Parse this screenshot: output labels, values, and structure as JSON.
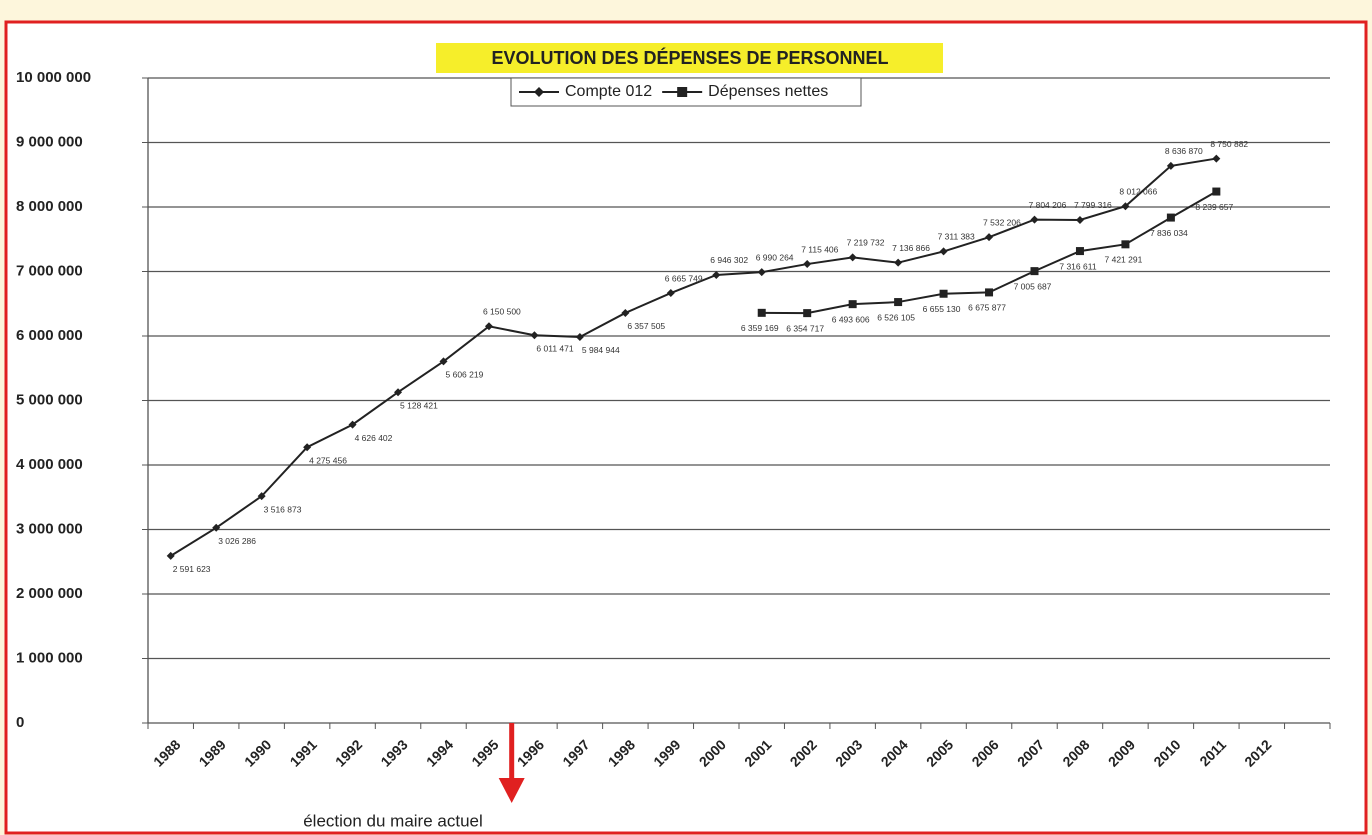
{
  "chart_data": {
    "type": "line",
    "title": "EVOLUTION DES DÉPENSES DE PERSONNEL",
    "annotation": "élection du maire actuel",
    "categories": [
      "1988",
      "1989",
      "1990",
      "1991",
      "1992",
      "1993",
      "1994",
      "1995",
      "1996",
      "1997",
      "1998",
      "1999",
      "2000",
      "2001",
      "2002",
      "2003",
      "2004",
      "2005",
      "2006",
      "2007",
      "2008",
      "2009",
      "2010",
      "2011",
      "2012",
      null
    ],
    "series": [
      {
        "name": "Compte 012",
        "color": "#222222",
        "marker": "diamond",
        "values": [
          2591623,
          3026286,
          3516873,
          4275456,
          4626402,
          5128421,
          5606219,
          6150500,
          6011471,
          5984944,
          6357505,
          6665749,
          6946302,
          6990264,
          7115406,
          7219732,
          7136866,
          7311383,
          7532206,
          7804206,
          7799316,
          8012066,
          8636870,
          8750882,
          null,
          null
        ],
        "value_labels": [
          "2 591 623",
          "3 026 286",
          "3 516 873",
          "4 275 456",
          "4 626 402",
          "5 128 421",
          "5 606 219",
          "6 150 500",
          "6 011 471",
          "5 984 944",
          "6 357 505",
          "6 665 749",
          "6 946 302",
          "6 990 264",
          "7 115 406",
          "7 219 732",
          "7 136 866",
          "7 311 383",
          "7 532 206",
          "7 804 206",
          "7 799 316",
          "8 012 066",
          "8 636 870",
          "8 750 882",
          null,
          null
        ]
      },
      {
        "name": "Dépenses nettes",
        "color": "#222222",
        "marker": "square",
        "values": [
          null,
          null,
          null,
          null,
          null,
          null,
          null,
          null,
          null,
          null,
          null,
          null,
          null,
          6359169,
          6354717,
          6493606,
          6526105,
          6655130,
          6675877,
          7005687,
          7316611,
          7421291,
          7836034,
          8239657,
          null,
          null
        ],
        "value_labels": [
          null,
          null,
          null,
          null,
          null,
          null,
          null,
          null,
          null,
          null,
          null,
          null,
          null,
          "6 359 169",
          "6 354 717",
          "6 493 606",
          "6 526 105",
          "6 655 130",
          "6 675 877",
          "7 005 687",
          "7 316 611",
          "7 421 291",
          "7 836 034",
          "8 239 657",
          null,
          null
        ]
      }
    ],
    "ylim": [
      0,
      10000000
    ],
    "yticks": [
      0,
      {
        "value": 1000000,
        "label": "1 000 000"
      },
      {
        "value": 2000000,
        "label": "2 000 000"
      },
      {
        "value": 3000000,
        "label": "3 000 000"
      },
      {
        "value": 4000000,
        "label": "4 000 000"
      },
      {
        "value": 5000000,
        "label": "5 000 000"
      },
      {
        "value": 6000000,
        "label": "6 000 000"
      },
      {
        "value": 7000000,
        "label": "7 000 000"
      },
      {
        "value": 8000000,
        "label": "8 000 000"
      },
      {
        "value": 9000000,
        "label": "9 000 000"
      },
      {
        "value": 10000000,
        "label": "10 000 000"
      }
    ],
    "grid": true,
    "legend": "top"
  }
}
